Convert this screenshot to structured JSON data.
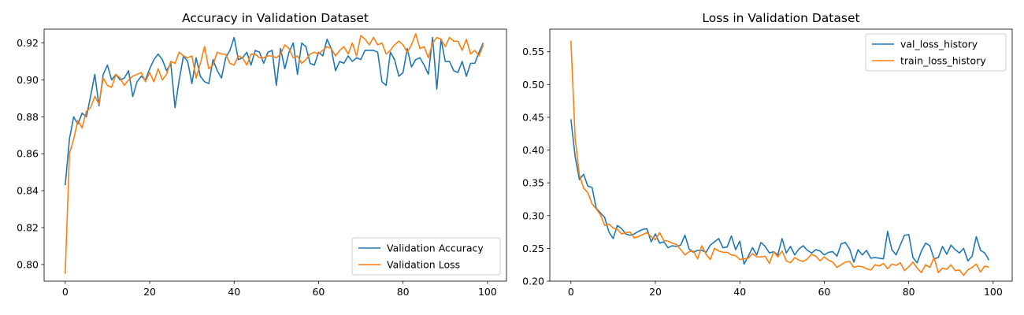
{
  "chart_data": [
    {
      "type": "line",
      "title": "Accuracy in Validation Dataset",
      "xlim": [
        -5,
        104.5
      ],
      "ylim": [
        0.791,
        0.9275
      ],
      "xticks": [
        0,
        20,
        40,
        60,
        80,
        100
      ],
      "yticks": [
        0.8,
        0.82,
        0.84,
        0.86,
        0.88,
        0.9,
        0.92
      ],
      "xtick_labels": [
        "0",
        "20",
        "40",
        "60",
        "80",
        "100"
      ],
      "ytick_labels": [
        "0.80",
        "0.82",
        "0.84",
        "0.86",
        "0.88",
        "0.90",
        "0.92"
      ],
      "legend_position": "lower-right",
      "series": [
        {
          "name": "Validation Accuracy",
          "color": "#1f77b4",
          "values": [
            0.843,
            0.868,
            0.88,
            0.876,
            0.882,
            0.88,
            0.891,
            0.903,
            0.886,
            0.903,
            0.908,
            0.9,
            0.903,
            0.9,
            0.901,
            0.905,
            0.891,
            0.899,
            0.902,
            0.9,
            0.906,
            0.911,
            0.914,
            0.911,
            0.905,
            0.909,
            0.885,
            0.9,
            0.913,
            0.91,
            0.898,
            0.912,
            0.902,
            0.899,
            0.898,
            0.911,
            0.905,
            0.901,
            0.912,
            0.916,
            0.923,
            0.911,
            0.912,
            0.915,
            0.908,
            0.916,
            0.915,
            0.909,
            0.915,
            0.916,
            0.897,
            0.917,
            0.906,
            0.915,
            0.92,
            0.903,
            0.92,
            0.918,
            0.909,
            0.908,
            0.915,
            0.913,
            0.922,
            0.917,
            0.905,
            0.91,
            0.909,
            0.913,
            0.91,
            0.912,
            0.911,
            0.916,
            0.916,
            0.916,
            0.915,
            0.899,
            0.897,
            0.915,
            0.911,
            0.902,
            0.904,
            0.917,
            0.907,
            0.911,
            0.912,
            0.908,
            0.903,
            0.923,
            0.895,
            0.922,
            0.91,
            0.91,
            0.905,
            0.904,
            0.91,
            0.902,
            0.909,
            0.909,
            0.915,
            0.92
          ]
        },
        {
          "name": "Validation Loss",
          "color": "#ff7f0e",
          "values": [
            0.795,
            0.86,
            0.868,
            0.878,
            0.874,
            0.883,
            0.885,
            0.891,
            0.887,
            0.901,
            0.897,
            0.896,
            0.903,
            0.901,
            0.897,
            0.9,
            0.902,
            0.903,
            0.904,
            0.899,
            0.904,
            0.899,
            0.906,
            0.9,
            0.903,
            0.91,
            0.909,
            0.915,
            0.913,
            0.912,
            0.913,
            0.901,
            0.909,
            0.918,
            0.906,
            0.908,
            0.915,
            0.914,
            0.914,
            0.909,
            0.908,
            0.913,
            0.912,
            0.908,
            0.914,
            0.914,
            0.912,
            0.912,
            0.913,
            0.913,
            0.912,
            0.914,
            0.919,
            0.917,
            0.912,
            0.913,
            0.909,
            0.911,
            0.914,
            0.915,
            0.914,
            0.916,
            0.918,
            0.917,
            0.913,
            0.916,
            0.918,
            0.914,
            0.92,
            0.913,
            0.924,
            0.922,
            0.919,
            0.923,
            0.919,
            0.92,
            0.914,
            0.916,
            0.919,
            0.921,
            0.919,
            0.915,
            0.919,
            0.925,
            0.917,
            0.918,
            0.912,
            0.92,
            0.923,
            0.922,
            0.918,
            0.923,
            0.921,
            0.921,
            0.916,
            0.922,
            0.914,
            0.916,
            0.913,
            0.919
          ]
        }
      ]
    },
    {
      "type": "line",
      "title": "Loss in Validation Dataset",
      "xlim": [
        -5,
        104.5
      ],
      "ylim": [
        0.2,
        0.5845
      ],
      "xticks": [
        0,
        20,
        40,
        60,
        80,
        100
      ],
      "yticks": [
        0.2,
        0.25,
        0.3,
        0.35,
        0.4,
        0.45,
        0.5,
        0.55
      ],
      "xtick_labels": [
        "0",
        "20",
        "40",
        "60",
        "80",
        "100"
      ],
      "ytick_labels": [
        "0.20",
        "0.25",
        "0.30",
        "0.35",
        "0.40",
        "0.45",
        "0.50",
        "0.55"
      ],
      "legend_position": "upper-right",
      "series": [
        {
          "name": "val_loss_history",
          "color": "#1f77b4",
          "values": [
            0.447,
            0.39,
            0.355,
            0.363,
            0.345,
            0.343,
            0.311,
            0.304,
            0.297,
            0.275,
            0.265,
            0.285,
            0.28,
            0.272,
            0.27,
            0.272,
            0.276,
            0.279,
            0.28,
            0.26,
            0.272,
            0.258,
            0.26,
            0.251,
            0.254,
            0.253,
            0.255,
            0.27,
            0.249,
            0.244,
            0.247,
            0.247,
            0.244,
            0.255,
            0.26,
            0.265,
            0.251,
            0.252,
            0.269,
            0.248,
            0.261,
            0.226,
            0.238,
            0.251,
            0.24,
            0.259,
            0.253,
            0.243,
            0.245,
            0.24,
            0.265,
            0.243,
            0.253,
            0.24,
            0.249,
            0.254,
            0.247,
            0.243,
            0.248,
            0.246,
            0.24,
            0.244,
            0.245,
            0.238,
            0.257,
            0.259,
            0.249,
            0.229,
            0.248,
            0.24,
            0.247,
            0.235,
            0.236,
            0.235,
            0.234,
            0.276,
            0.248,
            0.24,
            0.255,
            0.27,
            0.271,
            0.236,
            0.228,
            0.246,
            0.258,
            0.254,
            0.234,
            0.236,
            0.253,
            0.241,
            0.255,
            0.248,
            0.243,
            0.25,
            0.231,
            0.238,
            0.268,
            0.247,
            0.243,
            0.232
          ]
        },
        {
          "name": "train_loss_history",
          "color": "#ff7f0e",
          "values": [
            0.567,
            0.418,
            0.362,
            0.342,
            0.335,
            0.318,
            0.31,
            0.301,
            0.285,
            0.287,
            0.281,
            0.279,
            0.272,
            0.274,
            0.275,
            0.266,
            0.268,
            0.271,
            0.274,
            0.268,
            0.263,
            0.274,
            0.262,
            0.261,
            0.258,
            0.256,
            0.248,
            0.24,
            0.245,
            0.246,
            0.234,
            0.254,
            0.241,
            0.233,
            0.25,
            0.246,
            0.244,
            0.244,
            0.24,
            0.239,
            0.233,
            0.234,
            0.235,
            0.242,
            0.237,
            0.237,
            0.238,
            0.227,
            0.245,
            0.237,
            0.246,
            0.231,
            0.228,
            0.236,
            0.232,
            0.23,
            0.234,
            0.241,
            0.238,
            0.231,
            0.237,
            0.232,
            0.229,
            0.221,
            0.225,
            0.229,
            0.23,
            0.221,
            0.223,
            0.222,
            0.219,
            0.217,
            0.225,
            0.223,
            0.227,
            0.219,
            0.226,
            0.224,
            0.228,
            0.216,
            0.222,
            0.229,
            0.22,
            0.213,
            0.225,
            0.221,
            0.236,
            0.213,
            0.22,
            0.218,
            0.225,
            0.216,
            0.217,
            0.209,
            0.217,
            0.221,
            0.226,
            0.214,
            0.223,
            0.221
          ]
        }
      ]
    }
  ]
}
